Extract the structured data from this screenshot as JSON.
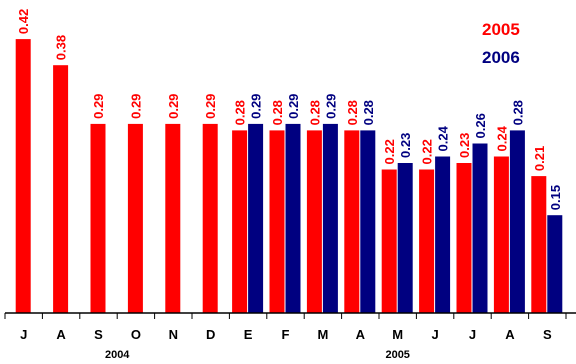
{
  "chart_data": {
    "type": "bar",
    "categories": [
      "J",
      "A",
      "S",
      "O",
      "N",
      "D",
      "E",
      "F",
      "M",
      "A",
      "M",
      "J",
      "J",
      "A",
      "S"
    ],
    "series": [
      {
        "name": "2005",
        "color": "#ff0000",
        "values": [
          0.42,
          0.38,
          0.29,
          0.29,
          0.29,
          0.29,
          0.28,
          0.28,
          0.28,
          0.28,
          0.22,
          0.22,
          0.23,
          0.24,
          0.21
        ],
        "labels": [
          "0.42",
          "0.38",
          "0.29",
          "0.29",
          "0.29",
          "0.29",
          "0.28",
          "0.28",
          "0.28",
          "0.28",
          "0.22",
          "0.22",
          "0.23",
          "0.24",
          "0.21"
        ]
      },
      {
        "name": "2006",
        "color": "#000080",
        "values": [
          null,
          null,
          null,
          null,
          null,
          null,
          0.29,
          0.29,
          0.29,
          0.28,
          0.23,
          0.24,
          0.26,
          0.28,
          0.15
        ],
        "labels": [
          "",
          "",
          "",
          "",
          "",
          "",
          "0.29",
          "0.29",
          "0.29",
          "0.28",
          "0.23",
          "0.24",
          "0.26",
          "0.28",
          "0.15"
        ]
      }
    ],
    "year_groups": [
      {
        "label": "2004",
        "from": 0,
        "to": 5
      },
      {
        "label": "2005",
        "from": 6,
        "to": 14
      }
    ],
    "legend": [
      "2005",
      "2006"
    ],
    "ylim": [
      0,
      0.48
    ],
    "grid": false,
    "legend_position": "top-right"
  }
}
